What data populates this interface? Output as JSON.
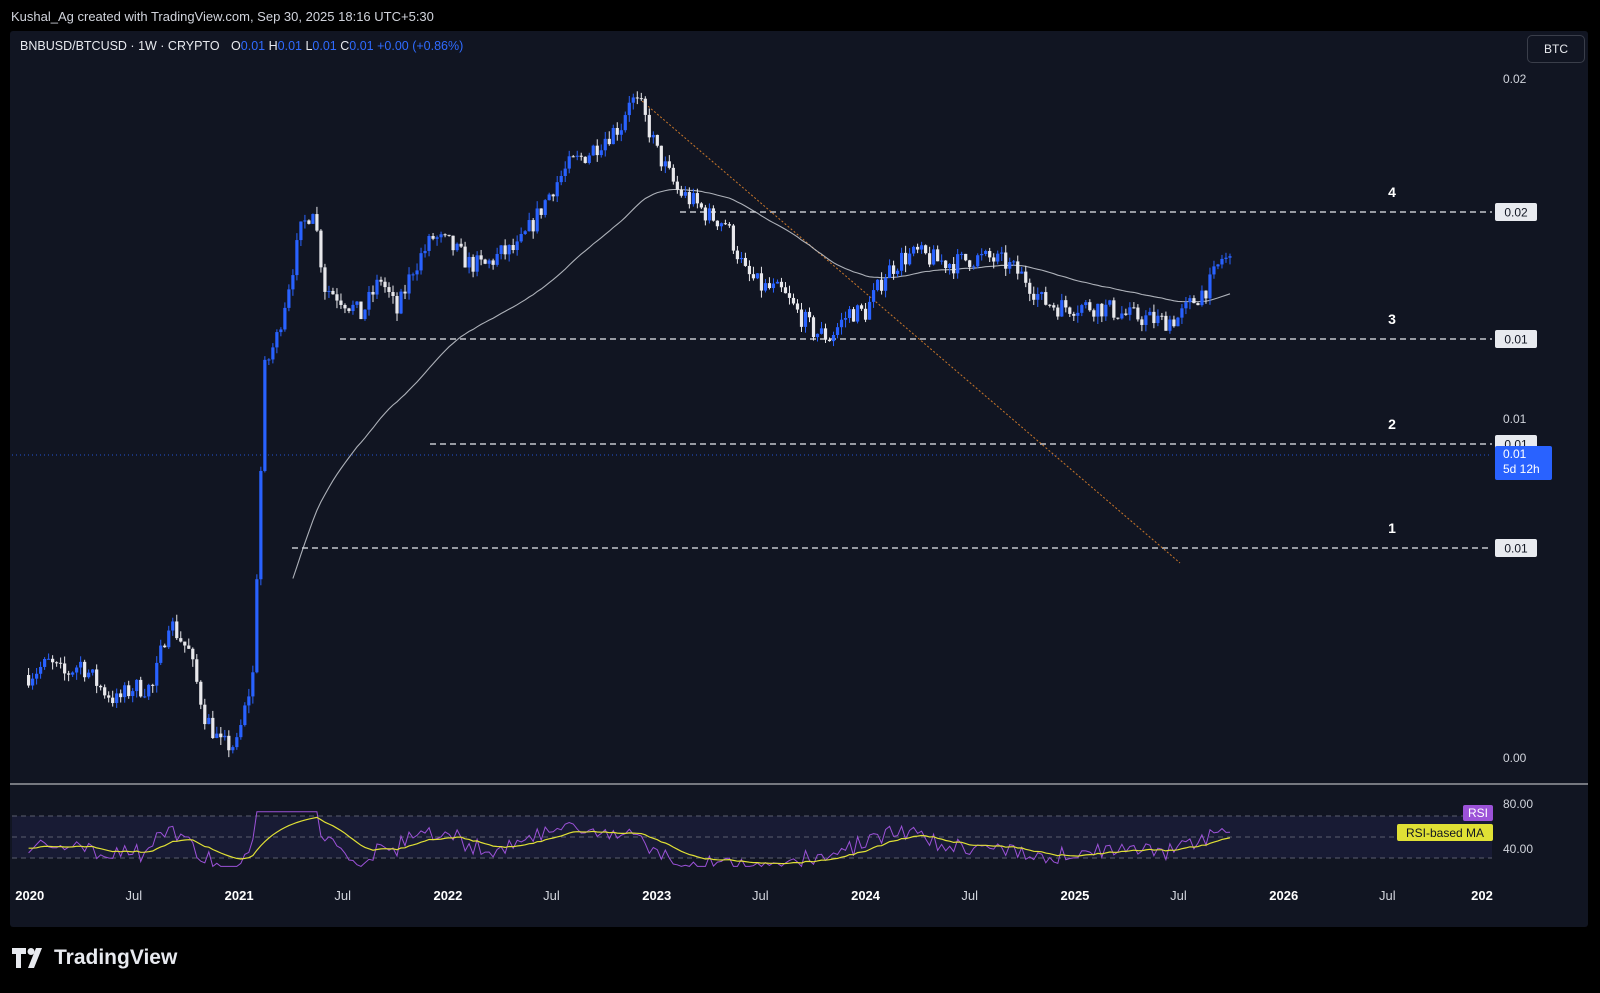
{
  "header": {
    "attribution": "Kushal_Ag created with TradingView.com, Sep 30, 2025 18:16 UTC+5:30"
  },
  "legend": {
    "symbol": "BNBUSD/BTCUSD · 1W · CRYPTO",
    "o_label": "O",
    "o_value": "0.01",
    "h_label": "H",
    "h_value": "0.01",
    "l_label": "L",
    "l_value": "0.01",
    "c_label": "C",
    "c_value": "0.01",
    "change": "+0.00 (+0.86%)"
  },
  "currency_button": "BTC",
  "brand": "TradingView",
  "colors": {
    "background": "#111522",
    "up": "#2962ff",
    "down": "#e8e8ec",
    "ma": "#c9ccd4",
    "trendline": "#c8762a",
    "rsi": "#9c52d8",
    "rsi_ma": "#e0e035",
    "current_price_badge": "#2962ff"
  },
  "chart_data": {
    "type": "candlestick",
    "title": "BNBUSD/BTCUSD · 1W · CRYPTO",
    "price_axis": {
      "labels": [
        "0.02",
        "0.01",
        "0.00"
      ],
      "log_scale": true
    },
    "time_axis": {
      "labels": [
        "2020",
        "Jul",
        "2021",
        "Jul",
        "2022",
        "Jul",
        "2023",
        "Jul",
        "2024",
        "Jul",
        "2025",
        "Jul",
        "2026",
        "Jul",
        "202"
      ]
    },
    "levels": [
      {
        "label": "4",
        "value_label": "0.02"
      },
      {
        "label": "3",
        "value_label": "0.01"
      },
      {
        "label": "2",
        "value_label": "0.01"
      },
      {
        "label": "1",
        "value_label": "0.01"
      }
    ],
    "current_price": {
      "value_label": "0.01",
      "countdown": "5d 12h"
    },
    "close_series": [
      [
        "2019-12-30",
        0.0021
      ],
      [
        "2020-02-03",
        0.0022
      ],
      [
        "2020-03-02",
        0.0021
      ],
      [
        "2020-03-30",
        0.0022
      ],
      [
        "2020-05-04",
        0.002
      ],
      [
        "2020-06-01",
        0.0019
      ],
      [
        "2020-06-29",
        0.002
      ],
      [
        "2020-08-03",
        0.002
      ],
      [
        "2020-08-31",
        0.0026
      ],
      [
        "2020-10-05",
        0.0023
      ],
      [
        "2020-11-02",
        0.0018
      ],
      [
        "2020-11-30",
        0.0016
      ],
      [
        "2020-12-28",
        0.0016
      ],
      [
        "2021-01-25",
        0.0021
      ],
      [
        "2021-02-15",
        0.0069
      ],
      [
        "2021-03-08",
        0.0078
      ],
      [
        "2021-03-29",
        0.0096
      ],
      [
        "2021-04-19",
        0.0118
      ],
      [
        "2021-05-10",
        0.013
      ],
      [
        "2021-05-31",
        0.0095
      ],
      [
        "2021-07-05",
        0.009
      ],
      [
        "2021-08-02",
        0.0085
      ],
      [
        "2021-09-06",
        0.0098
      ],
      [
        "2021-10-04",
        0.0086
      ],
      [
        "2021-11-01",
        0.0102
      ],
      [
        "2021-12-06",
        0.0115
      ],
      [
        "2022-01-03",
        0.0112
      ],
      [
        "2022-02-07",
        0.0104
      ],
      [
        "2022-03-07",
        0.0103
      ],
      [
        "2022-04-04",
        0.0108
      ],
      [
        "2022-05-02",
        0.011
      ],
      [
        "2022-06-06",
        0.0125
      ],
      [
        "2022-07-04",
        0.014
      ],
      [
        "2022-08-01",
        0.0152
      ],
      [
        "2022-09-05",
        0.016
      ],
      [
        "2022-10-03",
        0.017
      ],
      [
        "2022-10-31",
        0.0178
      ],
      [
        "2022-11-14",
        0.0198
      ],
      [
        "2022-12-05",
        0.019
      ],
      [
        "2023-01-02",
        0.016
      ],
      [
        "2023-02-06",
        0.0138
      ],
      [
        "2023-03-06",
        0.0132
      ],
      [
        "2023-04-03",
        0.0125
      ],
      [
        "2023-05-01",
        0.0122
      ],
      [
        "2023-06-05",
        0.01
      ],
      [
        "2023-07-03",
        0.0095
      ],
      [
        "2023-08-07",
        0.0093
      ],
      [
        "2023-09-04",
        0.0086
      ],
      [
        "2023-10-02",
        0.008
      ],
      [
        "2023-10-30",
        0.0078
      ],
      [
        "2023-12-04",
        0.0086
      ],
      [
        "2024-01-01",
        0.0086
      ],
      [
        "2024-02-05",
        0.01
      ],
      [
        "2024-03-04",
        0.0106
      ],
      [
        "2024-04-01",
        0.0108
      ],
      [
        "2024-05-06",
        0.0105
      ],
      [
        "2024-06-03",
        0.0104
      ],
      [
        "2024-07-01",
        0.0106
      ],
      [
        "2024-08-05",
        0.0106
      ],
      [
        "2024-09-02",
        0.0104
      ],
      [
        "2024-10-07",
        0.0098
      ],
      [
        "2024-11-04",
        0.009
      ],
      [
        "2024-12-02",
        0.0088
      ],
      [
        "2025-01-06",
        0.0088
      ],
      [
        "2025-02-03",
        0.0088
      ],
      [
        "2025-03-03",
        0.0087
      ],
      [
        "2025-03-31",
        0.0085
      ],
      [
        "2025-05-05",
        0.0084
      ],
      [
        "2025-06-02",
        0.0083
      ],
      [
        "2025-06-30",
        0.0084
      ],
      [
        "2025-07-28",
        0.009
      ],
      [
        "2025-08-25",
        0.0096
      ],
      [
        "2025-09-15",
        0.0106
      ],
      [
        "2025-09-29",
        0.0105
      ]
    ],
    "moving_average": {
      "style": "thin light grey line",
      "note_label": ""
    },
    "rsi_panel": {
      "labels": [
        "80.00",
        "40.00"
      ],
      "series_tags": [
        "RSI",
        "RSI-based MA"
      ]
    }
  }
}
